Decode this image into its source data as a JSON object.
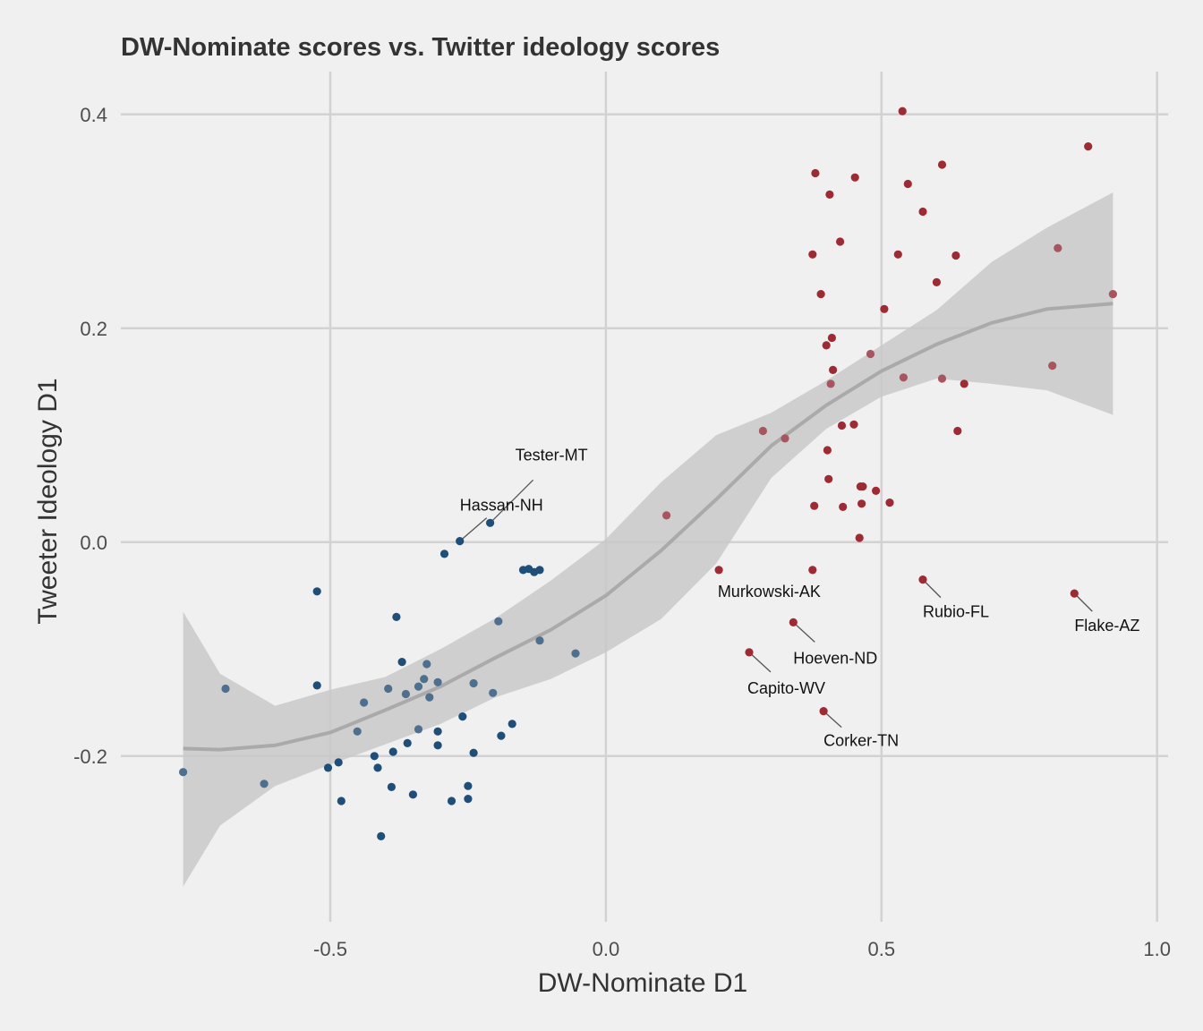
{
  "chart_data": {
    "type": "scatter",
    "title": "DW-Nominate scores vs. Twitter ideology scores",
    "xlabel": "DW-Nominate D1",
    "ylabel": "Tweeter Ideology D1",
    "xlim": [
      -0.88,
      1.02
    ],
    "ylim": [
      -0.355,
      0.44
    ],
    "xticks": [
      {
        "value": -0.5,
        "label": "-0.5"
      },
      {
        "value": 0.0,
        "label": "0.0"
      },
      {
        "value": 0.5,
        "label": "0.5"
      },
      {
        "value": 1.0,
        "label": "1.0"
      }
    ],
    "yticks": [
      {
        "value": 0.4,
        "label": "0.4"
      },
      {
        "value": 0.2,
        "label": "0.2"
      },
      {
        "value": 0.0,
        "label": "0.0"
      },
      {
        "value": -0.2,
        "label": "-0.2"
      }
    ],
    "grid": true,
    "colors": {
      "democrat": "#1f4e79",
      "republican": "#9e2a33",
      "smooth": "#aaaaaa",
      "band": "#c9c9c9"
    },
    "points": [
      {
        "x": -0.767,
        "y": -0.215,
        "party": "D"
      },
      {
        "x": -0.69,
        "y": -0.137,
        "party": "D"
      },
      {
        "x": -0.62,
        "y": -0.226,
        "party": "D"
      },
      {
        "x": -0.524,
        "y": -0.046,
        "party": "D"
      },
      {
        "x": -0.524,
        "y": -0.134,
        "party": "D"
      },
      {
        "x": -0.504,
        "y": -0.211,
        "party": "D"
      },
      {
        "x": -0.485,
        "y": -0.206,
        "party": "D"
      },
      {
        "x": -0.48,
        "y": -0.242,
        "party": "D"
      },
      {
        "x": -0.451,
        "y": -0.177,
        "party": "D"
      },
      {
        "x": -0.439,
        "y": -0.15,
        "party": "D"
      },
      {
        "x": -0.42,
        "y": -0.2,
        "party": "D"
      },
      {
        "x": -0.414,
        "y": -0.211,
        "party": "D"
      },
      {
        "x": -0.408,
        "y": -0.275,
        "party": "D"
      },
      {
        "x": -0.395,
        "y": -0.137,
        "party": "D"
      },
      {
        "x": -0.389,
        "y": -0.229,
        "party": "D"
      },
      {
        "x": -0.386,
        "y": -0.196,
        "party": "D"
      },
      {
        "x": -0.38,
        "y": -0.07,
        "party": "D"
      },
      {
        "x": -0.37,
        "y": -0.112,
        "party": "D"
      },
      {
        "x": -0.363,
        "y": -0.142,
        "party": "D"
      },
      {
        "x": -0.36,
        "y": -0.188,
        "party": "D"
      },
      {
        "x": -0.35,
        "y": -0.236,
        "party": "D"
      },
      {
        "x": -0.34,
        "y": -0.175,
        "party": "D"
      },
      {
        "x": -0.34,
        "y": -0.135,
        "party": "D"
      },
      {
        "x": -0.33,
        "y": -0.128,
        "party": "D"
      },
      {
        "x": -0.325,
        "y": -0.114,
        "party": "D"
      },
      {
        "x": -0.32,
        "y": -0.145,
        "party": "D"
      },
      {
        "x": -0.305,
        "y": -0.131,
        "party": "D"
      },
      {
        "x": -0.305,
        "y": -0.177,
        "party": "D"
      },
      {
        "x": -0.305,
        "y": -0.19,
        "party": "D"
      },
      {
        "x": -0.293,
        "y": -0.011,
        "party": "D"
      },
      {
        "x": -0.28,
        "y": -0.242,
        "party": "D"
      },
      {
        "x": -0.265,
        "y": 0.001,
        "party": "D",
        "label": "Hassan-NH"
      },
      {
        "x": -0.26,
        "y": -0.163,
        "party": "D"
      },
      {
        "x": -0.25,
        "y": -0.228,
        "party": "D"
      },
      {
        "x": -0.25,
        "y": -0.24,
        "party": "D"
      },
      {
        "x": -0.24,
        "y": -0.132,
        "party": "D"
      },
      {
        "x": -0.24,
        "y": -0.197,
        "party": "D"
      },
      {
        "x": -0.21,
        "y": 0.018,
        "party": "D",
        "label": "Tester-MT"
      },
      {
        "x": -0.205,
        "y": -0.141,
        "party": "D"
      },
      {
        "x": -0.195,
        "y": -0.074,
        "party": "D"
      },
      {
        "x": -0.19,
        "y": -0.181,
        "party": "D"
      },
      {
        "x": -0.17,
        "y": -0.17,
        "party": "D"
      },
      {
        "x": -0.15,
        "y": -0.026,
        "party": "D"
      },
      {
        "x": -0.14,
        "y": -0.025,
        "party": "D"
      },
      {
        "x": -0.13,
        "y": -0.028,
        "party": "D"
      },
      {
        "x": -0.12,
        "y": -0.026,
        "party": "D"
      },
      {
        "x": -0.12,
        "y": -0.092,
        "party": "D"
      },
      {
        "x": -0.055,
        "y": -0.104,
        "party": "D"
      },
      {
        "x": 0.11,
        "y": 0.025,
        "party": "R"
      },
      {
        "x": 0.205,
        "y": -0.026,
        "party": "R"
      },
      {
        "x": 0.26,
        "y": -0.103,
        "party": "R",
        "label": "Capito-WV"
      },
      {
        "x": 0.285,
        "y": 0.104,
        "party": "R"
      },
      {
        "x": 0.325,
        "y": 0.097,
        "party": "R"
      },
      {
        "x": 0.34,
        "y": -0.075,
        "party": "R",
        "label": "Hoeven-ND"
      },
      {
        "x": 0.375,
        "y": -0.026,
        "party": "R",
        "label": "Murkowski-AK"
      },
      {
        "x": 0.375,
        "y": 0.269,
        "party": "R"
      },
      {
        "x": 0.378,
        "y": 0.034,
        "party": "R"
      },
      {
        "x": 0.38,
        "y": 0.345,
        "party": "R"
      },
      {
        "x": 0.39,
        "y": 0.232,
        "party": "R"
      },
      {
        "x": 0.395,
        "y": -0.158,
        "party": "R",
        "label": "Corker-TN"
      },
      {
        "x": 0.4,
        "y": 0.184,
        "party": "R"
      },
      {
        "x": 0.402,
        "y": 0.086,
        "party": "R"
      },
      {
        "x": 0.404,
        "y": 0.059,
        "party": "R"
      },
      {
        "x": 0.406,
        "y": 0.325,
        "party": "R"
      },
      {
        "x": 0.408,
        "y": 0.148,
        "party": "R"
      },
      {
        "x": 0.41,
        "y": 0.191,
        "party": "R"
      },
      {
        "x": 0.412,
        "y": 0.161,
        "party": "R"
      },
      {
        "x": 0.425,
        "y": 0.281,
        "party": "R"
      },
      {
        "x": 0.428,
        "y": 0.109,
        "party": "R"
      },
      {
        "x": 0.43,
        "y": 0.033,
        "party": "R"
      },
      {
        "x": 0.45,
        "y": 0.11,
        "party": "R"
      },
      {
        "x": 0.452,
        "y": 0.341,
        "party": "R"
      },
      {
        "x": 0.46,
        "y": 0.004,
        "party": "R"
      },
      {
        "x": 0.462,
        "y": 0.052,
        "party": "R"
      },
      {
        "x": 0.464,
        "y": 0.036,
        "party": "R"
      },
      {
        "x": 0.466,
        "y": 0.052,
        "party": "R"
      },
      {
        "x": 0.48,
        "y": 0.176,
        "party": "R"
      },
      {
        "x": 0.49,
        "y": 0.048,
        "party": "R"
      },
      {
        "x": 0.505,
        "y": 0.218,
        "party": "R"
      },
      {
        "x": 0.515,
        "y": 0.037,
        "party": "R"
      },
      {
        "x": 0.53,
        "y": 0.269,
        "party": "R"
      },
      {
        "x": 0.538,
        "y": 0.403,
        "party": "R"
      },
      {
        "x": 0.54,
        "y": 0.154,
        "party": "R"
      },
      {
        "x": 0.548,
        "y": 0.335,
        "party": "R"
      },
      {
        "x": 0.575,
        "y": -0.035,
        "party": "R",
        "label": "Rubio-FL"
      },
      {
        "x": 0.575,
        "y": 0.309,
        "party": "R"
      },
      {
        "x": 0.6,
        "y": 0.243,
        "party": "R"
      },
      {
        "x": 0.61,
        "y": 0.153,
        "party": "R"
      },
      {
        "x": 0.61,
        "y": 0.353,
        "party": "R"
      },
      {
        "x": 0.635,
        "y": 0.268,
        "party": "R"
      },
      {
        "x": 0.638,
        "y": 0.104,
        "party": "R"
      },
      {
        "x": 0.65,
        "y": 0.148,
        "party": "R"
      },
      {
        "x": 0.81,
        "y": 0.165,
        "party": "R"
      },
      {
        "x": 0.82,
        "y": 0.275,
        "party": "R"
      },
      {
        "x": 0.85,
        "y": -0.048,
        "party": "R",
        "label": "Flake-AZ"
      },
      {
        "x": 0.875,
        "y": 0.37,
        "party": "R"
      },
      {
        "x": 0.92,
        "y": 0.232,
        "party": "R"
      }
    ],
    "smooth": {
      "x": [
        -0.767,
        -0.7,
        -0.6,
        -0.5,
        -0.4,
        -0.3,
        -0.2,
        -0.1,
        0.0,
        0.1,
        0.2,
        0.3,
        0.4,
        0.5,
        0.6,
        0.7,
        0.8,
        0.92
      ],
      "y": [
        -0.193,
        -0.194,
        -0.19,
        -0.178,
        -0.157,
        -0.135,
        -0.108,
        -0.082,
        -0.05,
        -0.008,
        0.04,
        0.09,
        0.128,
        0.16,
        0.185,
        0.205,
        0.218,
        0.223
      ],
      "lower": [
        -0.322,
        -0.265,
        -0.228,
        -0.208,
        -0.189,
        -0.17,
        -0.145,
        -0.128,
        -0.103,
        -0.072,
        -0.02,
        0.06,
        0.106,
        0.136,
        0.153,
        0.148,
        0.142,
        0.119
      ],
      "upper": [
        -0.065,
        -0.123,
        -0.153,
        -0.138,
        -0.126,
        -0.1,
        -0.071,
        -0.036,
        0.003,
        0.056,
        0.1,
        0.121,
        0.151,
        0.184,
        0.217,
        0.262,
        0.294,
        0.327
      ]
    }
  }
}
